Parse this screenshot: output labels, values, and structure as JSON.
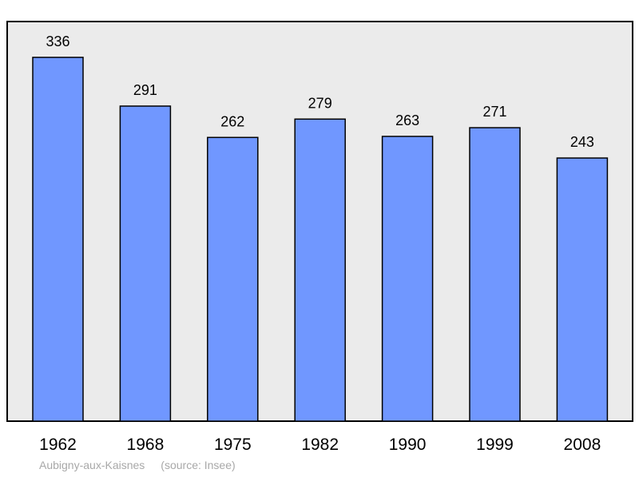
{
  "chart_data": {
    "type": "bar",
    "categories": [
      "1962",
      "1968",
      "1975",
      "1982",
      "1990",
      "1999",
      "2008"
    ],
    "values": [
      336,
      291,
      262,
      279,
      263,
      271,
      243
    ],
    "data_labels": [
      "336",
      "291",
      "262",
      "279",
      "263",
      "271",
      "243"
    ],
    "title": "",
    "xlabel": "",
    "ylabel": "",
    "ylim": [
      0,
      370
    ],
    "grid": false,
    "legend": "none",
    "bar_color": "#7097ff",
    "plot_background": "#ebebeb"
  },
  "caption": {
    "place": "Aubigny-aux-Kaisnes",
    "source": "(source: Insee)"
  }
}
